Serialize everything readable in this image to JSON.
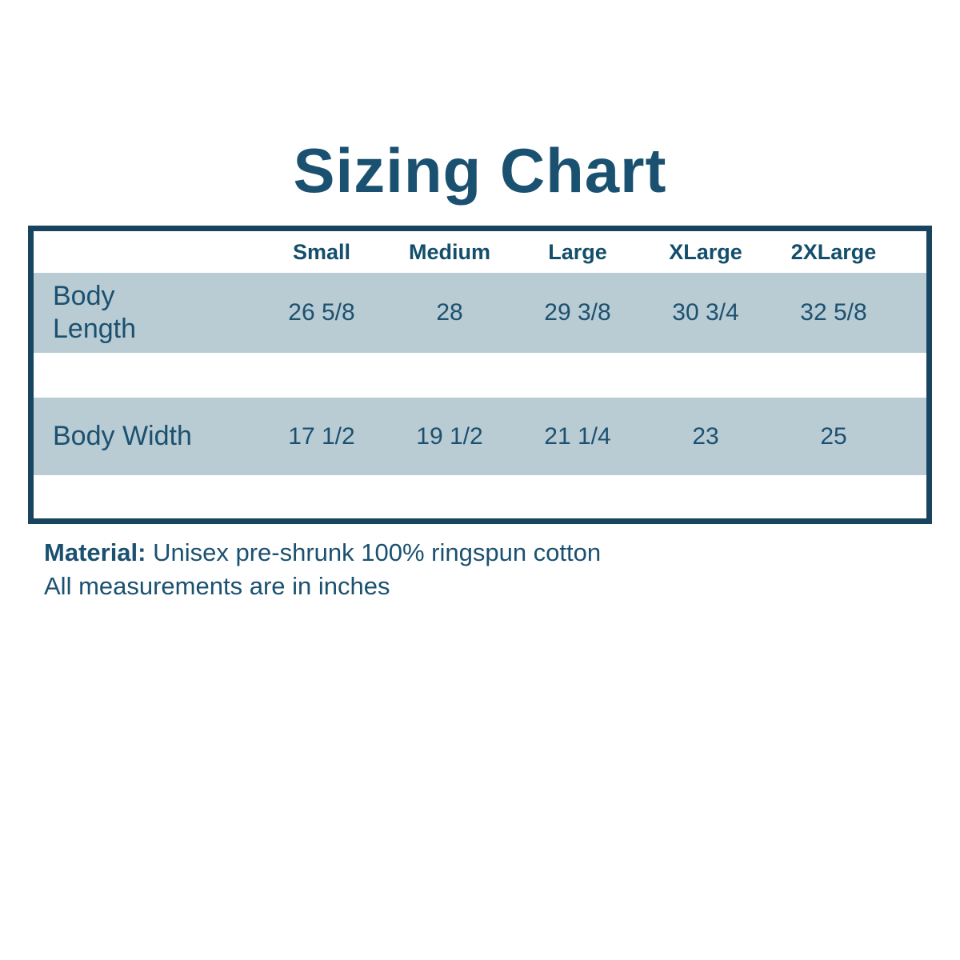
{
  "title": "Sizing Chart",
  "chart_data": {
    "type": "table",
    "title": "Sizing Chart",
    "columns": [
      "",
      "Small",
      "Medium",
      "Large",
      "XLarge",
      "2XLarge"
    ],
    "rows": [
      [
        "Body Length",
        "26 5/8",
        "28",
        "29 3/8",
        "30 3/4",
        "32 5/8"
      ],
      [
        "Body Width",
        "17 1/2",
        "19 1/2",
        "21 1/4",
        "23",
        "25"
      ]
    ],
    "notes": [
      "Material: Unisex pre-shrunk 100% ringspun cotton",
      "All measurements are in inches"
    ]
  },
  "footer": {
    "material_label": "Material:",
    "material_value": " Unisex pre-shrunk 100% ringspun cotton",
    "note": "All measurements are in inches"
  },
  "colors": {
    "accent": "#1b5170",
    "header_text": "#134e6b",
    "border": "#17455f",
    "row_bg": "#b9cbd3",
    "background": "#ffffff"
  }
}
